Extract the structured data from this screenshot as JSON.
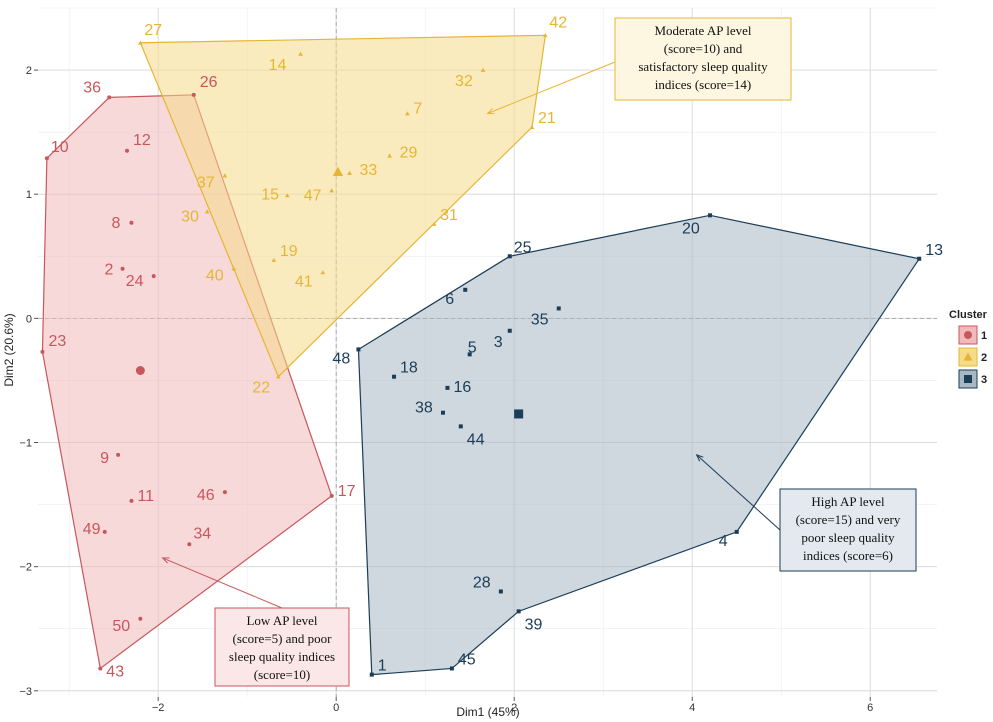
{
  "chart_data": {
    "type": "scatter",
    "xlabel": "Dim1 (45%)",
    "ylabel": "Dim2 (20.6%)",
    "xlim": [
      -3.35,
      6.75
    ],
    "ylim": [
      -3.05,
      2.5
    ],
    "x_ticks": [
      -2,
      0,
      2,
      4,
      6
    ],
    "y_ticks": [
      -3,
      -2,
      -1,
      0,
      1,
      2
    ],
    "grid": true,
    "legend": {
      "title": "Cluster",
      "placement": "right",
      "entries": [
        {
          "label": "1",
          "shape": "circle"
        },
        {
          "label": "2",
          "shape": "triangle"
        },
        {
          "label": "3",
          "shape": "square"
        }
      ]
    },
    "series": [
      {
        "name": "1",
        "color": "#c8575c",
        "fill": "#f1b9bb",
        "shape": "circle",
        "centroid": [
          -2.2,
          -0.42
        ],
        "points": [
          {
            "label": "36",
            "x": -2.55,
            "y": 1.78
          },
          {
            "label": "12",
            "x": -2.35,
            "y": 1.35
          },
          {
            "label": "10",
            "x": -3.25,
            "y": 1.29
          },
          {
            "label": "8",
            "x": -2.3,
            "y": 0.77
          },
          {
            "label": "2",
            "x": -2.4,
            "y": 0.4
          },
          {
            "label": "24",
            "x": -2.05,
            "y": 0.34
          },
          {
            "label": "23",
            "x": -3.3,
            "y": -0.27
          },
          {
            "label": "9",
            "x": -2.45,
            "y": -1.1
          },
          {
            "label": "11",
            "x": -2.3,
            "y": -1.47
          },
          {
            "label": "46",
            "x": -1.25,
            "y": -1.4
          },
          {
            "label": "49",
            "x": -2.6,
            "y": -1.72
          },
          {
            "label": "34",
            "x": -1.65,
            "y": -1.82
          },
          {
            "label": "50",
            "x": -2.2,
            "y": -2.42
          },
          {
            "label": "43",
            "x": -2.65,
            "y": -2.82
          },
          {
            "label": "26",
            "x": -1.6,
            "y": 1.8
          },
          {
            "label": "17",
            "x": -0.05,
            "y": -1.43
          }
        ],
        "hull": [
          "10",
          "36",
          "26",
          "17",
          "43",
          "23"
        ]
      },
      {
        "name": "2",
        "color": "#e6b535",
        "fill": "#f5db8a",
        "shape": "triangle",
        "centroid": [
          0.02,
          1.18
        ],
        "points": [
          {
            "label": "27",
            "x": -2.2,
            "y": 2.22
          },
          {
            "label": "42",
            "x": 2.35,
            "y": 2.28
          },
          {
            "label": "14",
            "x": -0.4,
            "y": 2.13
          },
          {
            "label": "32",
            "x": 1.65,
            "y": 2.0
          },
          {
            "label": "7",
            "x": 0.8,
            "y": 1.65
          },
          {
            "label": "21",
            "x": 2.2,
            "y": 1.54
          },
          {
            "label": "33",
            "x": 0.15,
            "y": 1.17
          },
          {
            "label": "29",
            "x": 0.6,
            "y": 1.31
          },
          {
            "label": "37",
            "x": -1.25,
            "y": 1.15
          },
          {
            "label": "15",
            "x": -0.55,
            "y": 0.99
          },
          {
            "label": "47",
            "x": -0.05,
            "y": 1.03
          },
          {
            "label": "30",
            "x": -1.45,
            "y": 0.86
          },
          {
            "label": "31",
            "x": 1.1,
            "y": 0.76
          },
          {
            "label": "19",
            "x": -0.7,
            "y": 0.47
          },
          {
            "label": "40",
            "x": -1.15,
            "y": 0.4
          },
          {
            "label": "41",
            "x": -0.15,
            "y": 0.37
          },
          {
            "label": "22",
            "x": -0.65,
            "y": -0.47
          }
        ],
        "hull": [
          "27",
          "42",
          "21",
          "22"
        ]
      },
      {
        "name": "3",
        "color": "#1b3d57",
        "fill": "#a7b7c4",
        "shape": "square",
        "centroid": [
          2.05,
          -0.77
        ],
        "points": [
          {
            "label": "20",
            "x": 4.2,
            "y": 0.83
          },
          {
            "label": "13",
            "x": 6.55,
            "y": 0.48
          },
          {
            "label": "25",
            "x": 1.95,
            "y": 0.5
          },
          {
            "label": "6",
            "x": 1.45,
            "y": 0.23
          },
          {
            "label": "35",
            "x": 2.5,
            "y": 0.08
          },
          {
            "label": "3",
            "x": 1.95,
            "y": -0.1
          },
          {
            "label": "5",
            "x": 1.5,
            "y": -0.29
          },
          {
            "label": "48",
            "x": 0.25,
            "y": -0.25
          },
          {
            "label": "18",
            "x": 0.65,
            "y": -0.47
          },
          {
            "label": "16",
            "x": 1.25,
            "y": -0.56
          },
          {
            "label": "38",
            "x": 1.2,
            "y": -0.76
          },
          {
            "label": "44",
            "x": 1.4,
            "y": -0.87
          },
          {
            "label": "4",
            "x": 4.5,
            "y": -1.72
          },
          {
            "label": "28",
            "x": 1.85,
            "y": -2.2
          },
          {
            "label": "39",
            "x": 2.05,
            "y": -2.36
          },
          {
            "label": "1",
            "x": 0.4,
            "y": -2.87
          },
          {
            "label": "45",
            "x": 1.3,
            "y": -2.82
          }
        ],
        "hull": [
          "48",
          "25",
          "20",
          "13",
          "4",
          "39",
          "45",
          "1"
        ]
      }
    ],
    "annotations": [
      {
        "text": [
          "Moderate AP level",
          "(score=10) and",
          "satisfactory sleep quality",
          "indices (score=14)"
        ],
        "cluster": "2",
        "arrow_to": [
          1.7,
          1.65
        ]
      },
      {
        "text": [
          "High AP level",
          "(score=15) and very",
          "poor sleep quality",
          "indices (score=6)"
        ],
        "cluster": "3",
        "arrow_to": [
          4.05,
          -1.1
        ]
      },
      {
        "text": [
          "Low AP level",
          "(score=5) and poor",
          "sleep quality indices",
          "(score=10)"
        ],
        "cluster": "1",
        "arrow_to": [
          -1.95,
          -1.93
        ]
      }
    ]
  }
}
